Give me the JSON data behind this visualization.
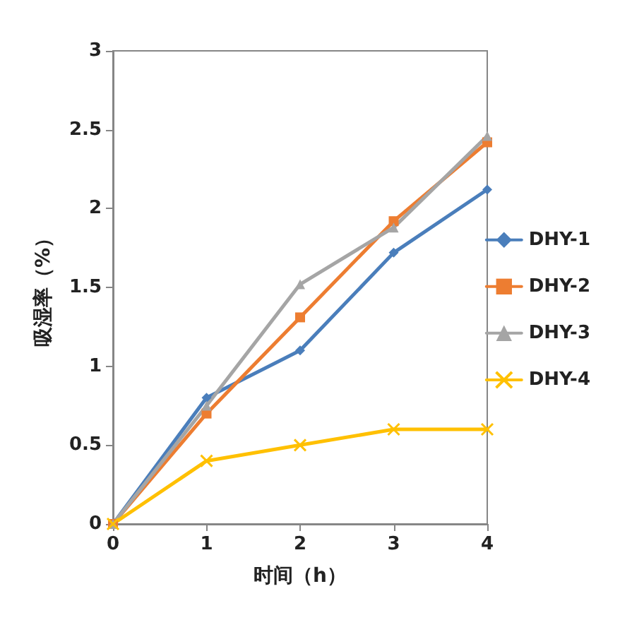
{
  "chart_data": {
    "type": "line",
    "xlabel": "时间（h）",
    "ylabel": "吸湿率（%）",
    "x": [
      0,
      1,
      2,
      3,
      4
    ],
    "xlim": [
      0,
      4
    ],
    "xticks": [
      0,
      1,
      2,
      3,
      4
    ],
    "ylim": [
      0,
      3
    ],
    "yticks": [
      0,
      0.5,
      1,
      1.5,
      2,
      2.5,
      3
    ],
    "grid": false,
    "legend": "right",
    "series": [
      {
        "name": "DHY-1",
        "color": "#4a7ebb",
        "marker": "diamond",
        "values": [
          0,
          0.8,
          1.1,
          1.72,
          2.12
        ]
      },
      {
        "name": "DHY-2",
        "color": "#ed7d31",
        "marker": "square",
        "values": [
          0,
          0.7,
          1.31,
          1.92,
          2.42
        ]
      },
      {
        "name": "DHY-3",
        "color": "#a5a5a5",
        "marker": "triangle",
        "values": [
          0,
          0.75,
          1.52,
          1.88,
          2.46
        ]
      },
      {
        "name": "DHY-4",
        "color": "#ffc000",
        "marker": "cross",
        "values": [
          0,
          0.4,
          0.5,
          0.6,
          0.6
        ]
      }
    ]
  }
}
